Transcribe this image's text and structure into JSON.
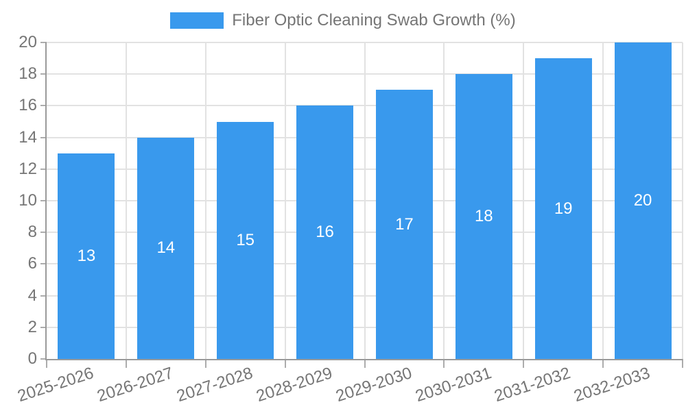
{
  "window": {
    "background": "#FFFFFF"
  },
  "legend": {
    "position": "top",
    "label": "Fiber Optic Cleaning Swab Growth (%)"
  },
  "chart_data": {
    "type": "bar",
    "title": "Fiber Optic Cleaning Swab Growth (%)",
    "categories": [
      "2025-2026",
      "2026-2027",
      "2027-2028",
      "2028-2029",
      "2029-2030",
      "2030-2031",
      "2031-2032",
      "2032-2033"
    ],
    "series": [
      {
        "name": "Fiber Optic Cleaning Swab Growth (%)",
        "values": [
          13,
          14,
          15,
          16,
          17,
          18,
          19,
          20
        ]
      }
    ],
    "values": [
      13,
      14,
      15,
      16,
      17,
      18,
      19,
      20
    ],
    "value_labels_shown": true,
    "xlabel": "",
    "ylabel": "",
    "ylim": [
      0,
      20
    ],
    "yticks": [
      0,
      2,
      4,
      6,
      8,
      10,
      12,
      14,
      16,
      18,
      20
    ],
    "grid": true,
    "legend_position": "top",
    "x_tick_rotation_deg": -18
  },
  "colors": {
    "bar": "#3999ED",
    "grid": "#E2E2E2",
    "axis": "#9A9A9A",
    "tick_mark": "#ACACAC",
    "tick_label": "#757575",
    "legend_label": "#757575",
    "value_label": "#FFFFFF",
    "background": "#FFFFFF"
  }
}
